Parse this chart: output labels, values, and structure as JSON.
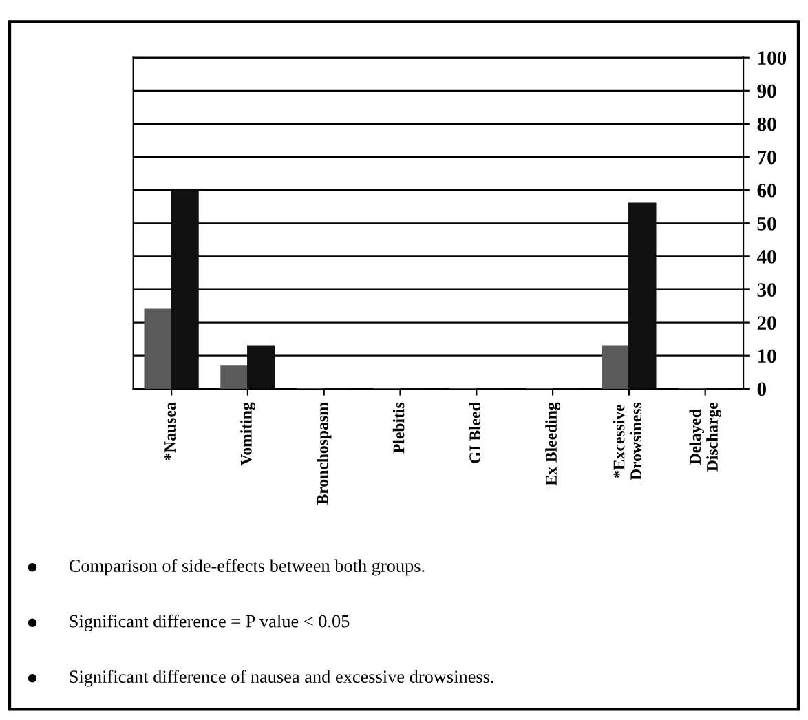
{
  "chart_data": {
    "type": "bar",
    "categories": [
      "*Nausea",
      "Vomiting",
      "Bronchospasm",
      "Plebitis",
      "GI Bleed",
      "Ex Bleeding",
      "*Excessive\nDrowsiness",
      "Delayed\nDischarge"
    ],
    "series": [
      {
        "color": "#5a5a5a",
        "values": [
          24,
          7,
          0,
          0,
          0,
          0,
          13,
          0
        ]
      },
      {
        "color": "#111111",
        "values": [
          60,
          13,
          0,
          0,
          0,
          0,
          56,
          0
        ]
      }
    ],
    "ylim": [
      0,
      100
    ],
    "yticks": [
      0,
      10,
      20,
      30,
      40,
      50,
      60,
      70,
      80,
      90,
      100
    ],
    "grid": "y",
    "annotations": [
      "Comparison of side-effects between both groups.",
      "Significant difference = P value < 0.05",
      "Significant difference of nausea and excessive drowsiness."
    ]
  }
}
